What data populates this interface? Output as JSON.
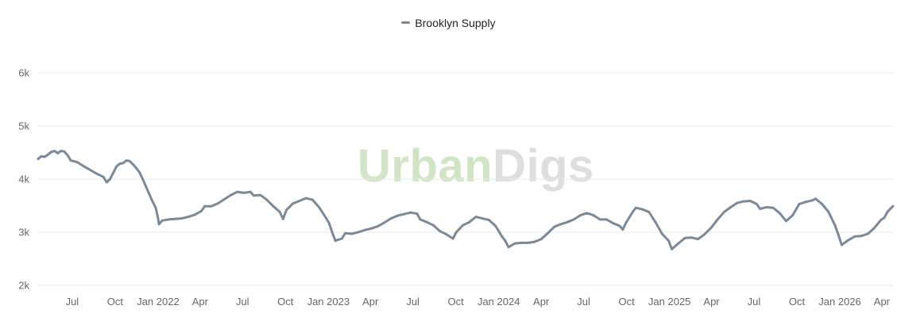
{
  "legend": {
    "label": "Brooklyn Supply"
  },
  "watermark": {
    "part1": "Urban",
    "part2": "Digs"
  },
  "colors": {
    "series": "#7a8a99",
    "grid": "#e9e9e9",
    "axis_text": "#666666"
  },
  "chart_data": {
    "type": "line",
    "title": "",
    "xlabel": "",
    "ylabel": "",
    "ylim": [
      2000,
      6000
    ],
    "y_ticks": [
      {
        "value": 2000,
        "label": "2k"
      },
      {
        "value": 3000,
        "label": "3k"
      },
      {
        "value": 4000,
        "label": "4k"
      },
      {
        "value": 5000,
        "label": "5k"
      },
      {
        "value": 6000,
        "label": "6k"
      }
    ],
    "xlim": [
      "2021-04-19",
      "2026-04-25"
    ],
    "x_ticks": [
      {
        "date": "2021-07-01",
        "label": "Jul"
      },
      {
        "date": "2021-10-01",
        "label": "Oct"
      },
      {
        "date": "2022-01-01",
        "label": "Jan 2022"
      },
      {
        "date": "2022-04-01",
        "label": "Apr"
      },
      {
        "date": "2022-07-01",
        "label": "Jul"
      },
      {
        "date": "2022-10-01",
        "label": "Oct"
      },
      {
        "date": "2023-01-01",
        "label": "Jan 2023"
      },
      {
        "date": "2023-04-01",
        "label": "Apr"
      },
      {
        "date": "2023-07-01",
        "label": "Jul"
      },
      {
        "date": "2023-10-01",
        "label": "Oct"
      },
      {
        "date": "2024-01-01",
        "label": "Jan 2024"
      },
      {
        "date": "2024-04-01",
        "label": "Apr"
      },
      {
        "date": "2024-07-01",
        "label": "Jul"
      },
      {
        "date": "2024-10-01",
        "label": "Oct"
      },
      {
        "date": "2025-01-01",
        "label": "Jan 2025"
      },
      {
        "date": "2025-04-01",
        "label": "Apr"
      },
      {
        "date": "2025-07-01",
        "label": "Jul"
      },
      {
        "date": "2025-10-01",
        "label": "Oct"
      },
      {
        "date": "2026-01-01",
        "label": "Jan 2026"
      },
      {
        "date": "2026-04-01",
        "label": "Apr"
      }
    ],
    "grid": true,
    "legend_position": "top",
    "series": [
      {
        "name": "Brooklyn Supply",
        "color": "#7a8a99",
        "points": [
          [
            "2021-04-19",
            4380
          ],
          [
            "2021-04-26",
            4430
          ],
          [
            "2021-05-03",
            4420
          ],
          [
            "2021-05-10",
            4460
          ],
          [
            "2021-05-17",
            4510
          ],
          [
            "2021-05-24",
            4530
          ],
          [
            "2021-05-31",
            4490
          ],
          [
            "2021-06-07",
            4530
          ],
          [
            "2021-06-14",
            4520
          ],
          [
            "2021-06-21",
            4450
          ],
          [
            "2021-06-28",
            4350
          ],
          [
            "2021-07-12",
            4320
          ],
          [
            "2021-07-26",
            4240
          ],
          [
            "2021-08-09",
            4170
          ],
          [
            "2021-08-23",
            4100
          ],
          [
            "2021-09-06",
            4040
          ],
          [
            "2021-09-13",
            3940
          ],
          [
            "2021-09-20",
            4000
          ],
          [
            "2021-09-27",
            4120
          ],
          [
            "2021-10-04",
            4240
          ],
          [
            "2021-10-11",
            4290
          ],
          [
            "2021-10-18",
            4300
          ],
          [
            "2021-10-25",
            4350
          ],
          [
            "2021-11-01",
            4340
          ],
          [
            "2021-11-08",
            4280
          ],
          [
            "2021-11-15",
            4210
          ],
          [
            "2021-11-22",
            4130
          ],
          [
            "2021-11-29",
            4000
          ],
          [
            "2021-12-06",
            3860
          ],
          [
            "2021-12-13",
            3720
          ],
          [
            "2021-12-20",
            3580
          ],
          [
            "2021-12-27",
            3460
          ],
          [
            "2021-12-31",
            3300
          ],
          [
            "2022-01-03",
            3150
          ],
          [
            "2022-01-10",
            3220
          ],
          [
            "2022-01-24",
            3240
          ],
          [
            "2022-02-07",
            3250
          ],
          [
            "2022-02-21",
            3260
          ],
          [
            "2022-03-07",
            3290
          ],
          [
            "2022-03-21",
            3330
          ],
          [
            "2022-04-04",
            3400
          ],
          [
            "2022-04-11",
            3490
          ],
          [
            "2022-04-25",
            3490
          ],
          [
            "2022-05-09",
            3540
          ],
          [
            "2022-05-23",
            3620
          ],
          [
            "2022-06-06",
            3700
          ],
          [
            "2022-06-20",
            3760
          ],
          [
            "2022-07-04",
            3740
          ],
          [
            "2022-07-18",
            3760
          ],
          [
            "2022-07-25",
            3690
          ],
          [
            "2022-08-08",
            3700
          ],
          [
            "2022-08-22",
            3610
          ],
          [
            "2022-09-05",
            3490
          ],
          [
            "2022-09-19",
            3380
          ],
          [
            "2022-09-26",
            3250
          ],
          [
            "2022-10-03",
            3420
          ],
          [
            "2022-10-17",
            3540
          ],
          [
            "2022-10-31",
            3590
          ],
          [
            "2022-11-14",
            3640
          ],
          [
            "2022-11-28",
            3610
          ],
          [
            "2022-12-12",
            3470
          ],
          [
            "2022-12-26",
            3280
          ],
          [
            "2023-01-02",
            3180
          ],
          [
            "2023-01-09",
            3000
          ],
          [
            "2023-01-16",
            2840
          ],
          [
            "2023-01-30",
            2880
          ],
          [
            "2023-02-06",
            2980
          ],
          [
            "2023-02-20",
            2970
          ],
          [
            "2023-03-06",
            3000
          ],
          [
            "2023-03-20",
            3040
          ],
          [
            "2023-04-03",
            3070
          ],
          [
            "2023-04-17",
            3110
          ],
          [
            "2023-05-01",
            3180
          ],
          [
            "2023-05-15",
            3260
          ],
          [
            "2023-05-29",
            3310
          ],
          [
            "2023-06-12",
            3340
          ],
          [
            "2023-06-26",
            3370
          ],
          [
            "2023-07-10",
            3350
          ],
          [
            "2023-07-17",
            3240
          ],
          [
            "2023-07-31",
            3190
          ],
          [
            "2023-08-14",
            3130
          ],
          [
            "2023-08-28",
            3020
          ],
          [
            "2023-09-11",
            2960
          ],
          [
            "2023-09-25",
            2880
          ],
          [
            "2023-10-02",
            3000
          ],
          [
            "2023-10-16",
            3130
          ],
          [
            "2023-10-30",
            3190
          ],
          [
            "2023-11-13",
            3290
          ],
          [
            "2023-11-27",
            3260
          ],
          [
            "2023-12-11",
            3230
          ],
          [
            "2023-12-25",
            3120
          ],
          [
            "2024-01-08",
            2920
          ],
          [
            "2024-01-15",
            2840
          ],
          [
            "2024-01-22",
            2720
          ],
          [
            "2024-02-05",
            2790
          ],
          [
            "2024-02-19",
            2800
          ],
          [
            "2024-03-04",
            2800
          ],
          [
            "2024-03-18",
            2820
          ],
          [
            "2024-04-01",
            2870
          ],
          [
            "2024-04-15",
            2980
          ],
          [
            "2024-04-29",
            3100
          ],
          [
            "2024-05-13",
            3150
          ],
          [
            "2024-05-27",
            3190
          ],
          [
            "2024-06-10",
            3240
          ],
          [
            "2024-06-24",
            3320
          ],
          [
            "2024-07-08",
            3360
          ],
          [
            "2024-07-22",
            3320
          ],
          [
            "2024-08-05",
            3240
          ],
          [
            "2024-08-19",
            3240
          ],
          [
            "2024-09-02",
            3170
          ],
          [
            "2024-09-16",
            3120
          ],
          [
            "2024-09-23",
            3050
          ],
          [
            "2024-09-30",
            3180
          ],
          [
            "2024-10-14",
            3380
          ],
          [
            "2024-10-21",
            3460
          ],
          [
            "2024-11-04",
            3430
          ],
          [
            "2024-11-18",
            3380
          ],
          [
            "2024-12-02",
            3190
          ],
          [
            "2024-12-16",
            2970
          ],
          [
            "2024-12-30",
            2840
          ],
          [
            "2025-01-06",
            2680
          ],
          [
            "2025-01-20",
            2790
          ],
          [
            "2025-02-03",
            2890
          ],
          [
            "2025-02-17",
            2900
          ],
          [
            "2025-03-03",
            2870
          ],
          [
            "2025-03-17",
            2960
          ],
          [
            "2025-03-31",
            3080
          ],
          [
            "2025-04-14",
            3240
          ],
          [
            "2025-04-28",
            3380
          ],
          [
            "2025-05-12",
            3470
          ],
          [
            "2025-05-26",
            3550
          ],
          [
            "2025-06-09",
            3580
          ],
          [
            "2025-06-23",
            3590
          ],
          [
            "2025-07-07",
            3530
          ],
          [
            "2025-07-14",
            3440
          ],
          [
            "2025-07-28",
            3470
          ],
          [
            "2025-08-11",
            3460
          ],
          [
            "2025-08-25",
            3360
          ],
          [
            "2025-09-08",
            3210
          ],
          [
            "2025-09-22",
            3320
          ],
          [
            "2025-10-06",
            3530
          ],
          [
            "2025-10-20",
            3570
          ],
          [
            "2025-11-03",
            3600
          ],
          [
            "2025-11-10",
            3630
          ],
          [
            "2025-11-24",
            3530
          ],
          [
            "2025-12-08",
            3380
          ],
          [
            "2025-12-22",
            3120
          ],
          [
            "2025-12-29",
            2950
          ],
          [
            "2026-01-05",
            2760
          ],
          [
            "2026-01-19",
            2850
          ],
          [
            "2026-02-02",
            2920
          ],
          [
            "2026-02-16",
            2930
          ],
          [
            "2026-03-02",
            2970
          ],
          [
            "2026-03-16",
            3080
          ],
          [
            "2026-03-30",
            3230
          ],
          [
            "2026-04-06",
            3270
          ],
          [
            "2026-04-13",
            3380
          ],
          [
            "2026-04-20",
            3450
          ],
          [
            "2026-04-25",
            3490
          ]
        ]
      }
    ]
  }
}
